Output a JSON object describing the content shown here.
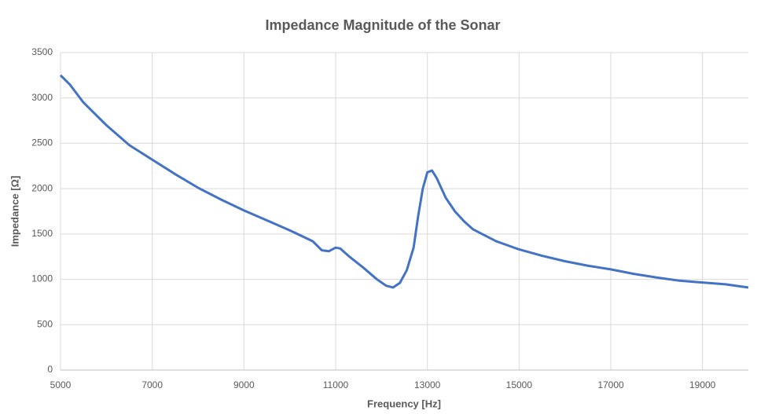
{
  "chart_data": {
    "type": "line",
    "title": "Impedance Magnitude of the Sonar",
    "x_label": "Frequency [Hz]",
    "y_label": "Impedance [Ω]",
    "x": [
      5000,
      5200,
      5500,
      6000,
      6500,
      7000,
      7500,
      8000,
      8500,
      9000,
      9500,
      10000,
      10500,
      10700,
      10850,
      11000,
      11100,
      11300,
      11600,
      11900,
      12100,
      12250,
      12400,
      12550,
      12700,
      12800,
      12900,
      13000,
      13100,
      13200,
      13400,
      13600,
      13800,
      14000,
      14500,
      15000,
      15500,
      16000,
      16500,
      17000,
      17500,
      18000,
      18500,
      19000,
      19500,
      20000
    ],
    "values": [
      3250,
      3150,
      2950,
      2700,
      2480,
      2320,
      2160,
      2010,
      1880,
      1760,
      1650,
      1540,
      1420,
      1320,
      1310,
      1350,
      1340,
      1250,
      1130,
      1000,
      930,
      910,
      960,
      1100,
      1350,
      1700,
      2000,
      2180,
      2200,
      2120,
      1900,
      1750,
      1640,
      1550,
      1420,
      1330,
      1260,
      1200,
      1150,
      1110,
      1060,
      1020,
      985,
      965,
      945,
      910
    ],
    "color": "#4472c4",
    "xlim": [
      5000,
      20000
    ],
    "xticks": [
      5000,
      7000,
      9000,
      11000,
      13000,
      15000,
      17000,
      19000
    ],
    "ylim": [
      0,
      3500
    ],
    "yticks": [
      0,
      500,
      1000,
      1500,
      2000,
      2500,
      3000,
      3500
    ],
    "grid": true
  }
}
